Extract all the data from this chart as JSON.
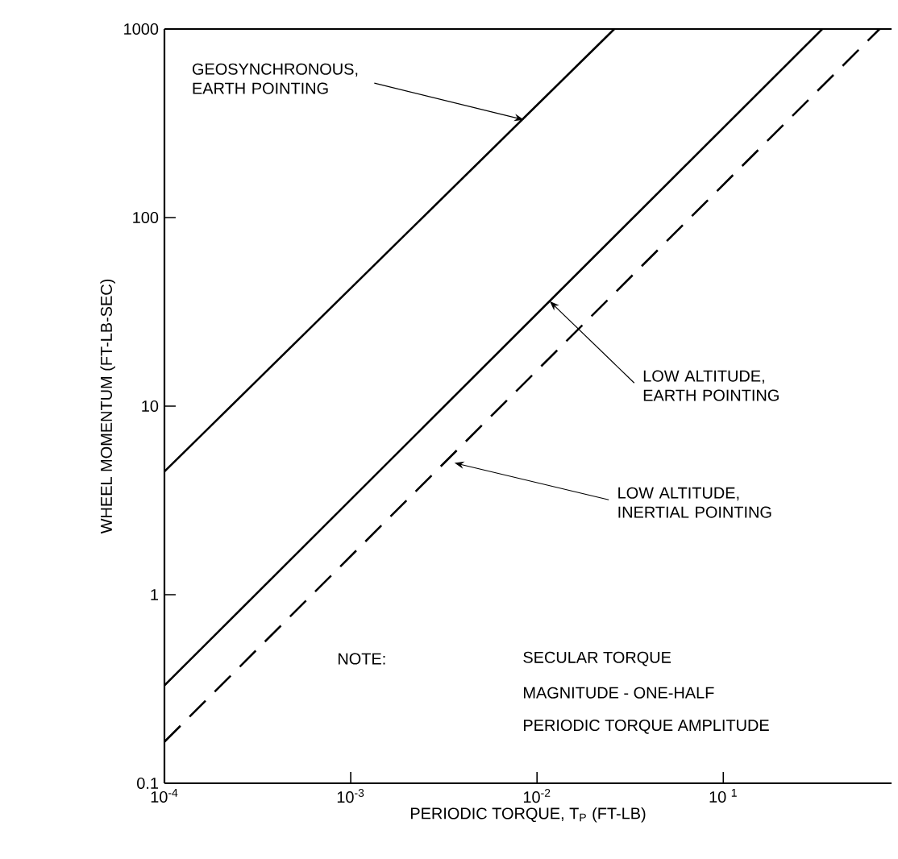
{
  "chart_data": {
    "type": "line",
    "xlabel": "PERIODIC TORQUE, T$_{P}$ (FT-LB)",
    "ylabel": "WHEEL MOMENTUM (FT-LB-SEC)",
    "log": "xy",
    "xlim": [
      0.0001,
      0.8
    ],
    "ylim": [
      0.1,
      1000
    ],
    "xticks": [
      {
        "value": 0.0001,
        "label": "10$^{-4}$"
      },
      {
        "value": 0.001,
        "label": "10$^{-3}$"
      },
      {
        "value": 0.01,
        "label": "10$^{-2}$"
      },
      {
        "value": 0.1,
        "label": "10 $^{1}$"
      }
    ],
    "yticks": [
      {
        "value": 0.1,
        "label": "0.1"
      },
      1,
      10,
      100,
      1000
    ],
    "marker": "none",
    "grid": false,
    "series": [
      {
        "color": "#000000",
        "line_style": "solid",
        "x": [
          0.0001,
          0.026
        ],
        "values": [
          4.5,
          1000
        ]
      },
      {
        "color": "#000000",
        "line_style": "solid",
        "x": [
          0.0001,
          0.34
        ],
        "values": [
          0.33,
          1000
        ]
      },
      {
        "color": "#000000",
        "line_style": "dashed",
        "x": [
          0.0001,
          0.69
        ],
        "values": [
          0.166,
          1000
        ]
      }
    ],
    "annotations": [
      {
        "text": "GEOSYNCHRONOUS, EARTH POINTING",
        "x": 0.0085,
        "y": 330
      },
      {
        "text": "LOW ALTITUDE, EARTH POINTING",
        "x": 0.0117,
        "y": 36
      },
      {
        "text": "LOW ALTITUDE, INERTIAL POINTING",
        "x": 0.0036,
        "y": 5.0
      },
      "NOTE:",
      "SECULAR TORQUE",
      "MAGNITUDE - ONE-HALF",
      "PERIODIC TORQUE AMPLITUDE"
    ]
  }
}
